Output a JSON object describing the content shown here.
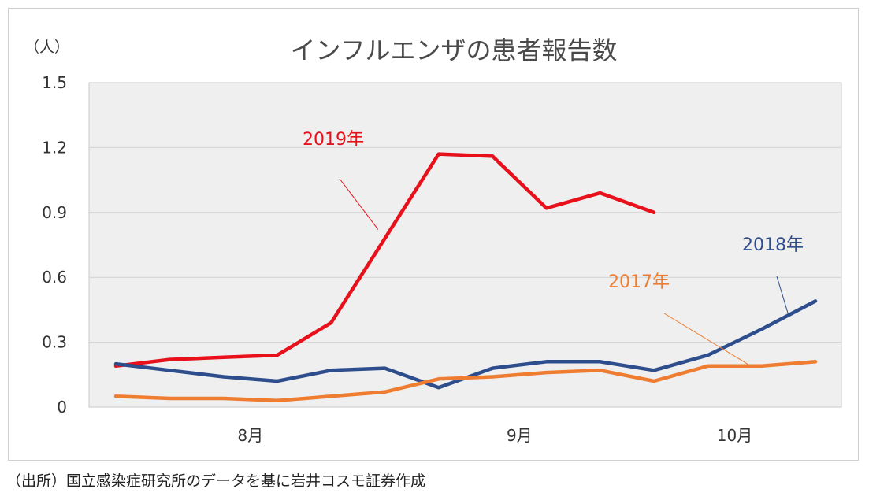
{
  "chart_data": {
    "type": "line",
    "title": "インフルエンザの患者報告数",
    "ylabel": "（人）",
    "ylim": [
      0,
      1.5
    ],
    "yticks": [
      "0",
      "0.3",
      "0.6",
      "0.9",
      "1.2",
      "1.5"
    ],
    "ytick_values": [
      0,
      0.3,
      0.6,
      0.9,
      1.2,
      1.5
    ],
    "x_index_max": 13,
    "month_labels": [
      {
        "label": "8月",
        "x": 2.5
      },
      {
        "label": "9月",
        "x": 7.5
      },
      {
        "label": "10月",
        "x": 11.5
      }
    ],
    "series": [
      {
        "name": "2019年",
        "color": "#e8101a",
        "values": [
          0.19,
          0.22,
          0.23,
          0.24,
          0.39,
          0.78,
          1.17,
          1.16,
          0.92,
          0.99,
          0.9
        ]
      },
      {
        "name": "2018年",
        "color": "#2e4d8c",
        "values": [
          0.2,
          0.17,
          0.14,
          0.12,
          0.17,
          0.18,
          0.09,
          0.18,
          0.21,
          0.21,
          0.17,
          0.24,
          0.36,
          0.49
        ]
      },
      {
        "name": "2017年",
        "color": "#ee7d31",
        "values": [
          0.05,
          0.04,
          0.04,
          0.03,
          0.05,
          0.07,
          0.13,
          0.14,
          0.16,
          0.17,
          0.12,
          0.19,
          0.19,
          0.21
        ]
      }
    ],
    "annotations": [
      {
        "text": "2019年",
        "series": "2019年"
      },
      {
        "text": "2018年",
        "series": "2018年"
      },
      {
        "text": "2017年",
        "series": "2017年"
      }
    ],
    "grid": true
  },
  "source": "（出所）国立感染症研究所のデータを基に岩井コスモ証券作成"
}
